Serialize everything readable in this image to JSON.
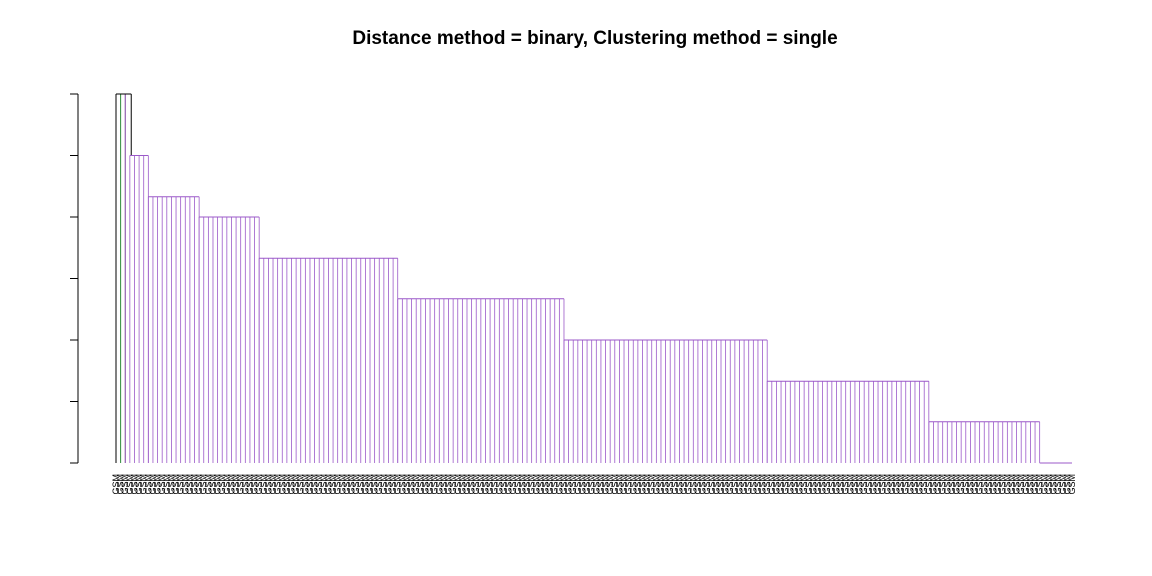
{
  "chart_data": {
    "type": "dendrogram",
    "title": "Distance method = binary, Clustering method = single",
    "xlabel": "",
    "ylabel": "",
    "y_tick_count": 7,
    "leaf_label_text": "GSM",
    "outlier_leaves": 3,
    "merge_levels": [
      6,
      5,
      4,
      3,
      2,
      1,
      0
    ],
    "cluster_leaf_counts": [
      5,
      11,
      13,
      30,
      36,
      44,
      35,
      24,
      7
    ],
    "colors": {
      "main_cluster": "#9b59c9",
      "outlier_black": "#000000",
      "outlier_green": "#2e8b3a",
      "outlier_purple": "#7b3fa0",
      "axis": "#000000"
    }
  }
}
